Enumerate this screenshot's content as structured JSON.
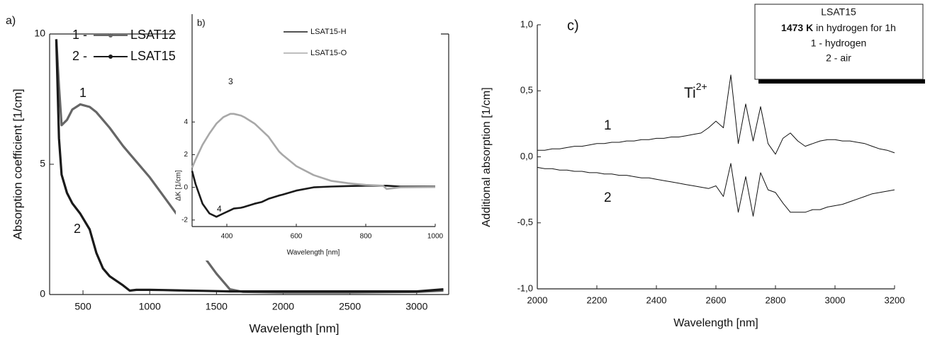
{
  "chart_data": [
    {
      "type": "line",
      "title": "a)",
      "xlabel": "Wavelength [nm]",
      "ylabel": "Absorption coefficient [1/cm]",
      "x": [
        300,
        320,
        340,
        380,
        420,
        480,
        550,
        600,
        650,
        700,
        800,
        850,
        900,
        1000,
        1100,
        1200,
        1300,
        1400,
        1500,
        1600,
        1700,
        2000,
        2500,
        3000,
        3200
      ],
      "xlim": [
        250,
        3240
      ],
      "ylim": [
        0,
        10
      ],
      "xticks": [
        500,
        1000,
        1500,
        2000,
        2500,
        3000
      ],
      "yticks": [
        0,
        5,
        10
      ],
      "series": [
        {
          "name": "LSAT12",
          "legend_prefix": "1 -",
          "color": "#666666",
          "values": [
            9.8,
            8.0,
            6.5,
            6.7,
            7.1,
            7.3,
            7.2,
            7.0,
            6.7,
            6.4,
            5.7,
            5.4,
            5.1,
            4.5,
            3.8,
            3.1,
            2.3,
            1.5,
            0.8,
            0.2,
            0.1,
            0.08,
            0.08,
            0.1,
            0.15
          ]
        },
        {
          "name": "LSAT15",
          "legend_prefix": "2 -",
          "color": "#1a1a1a",
          "values": [
            9.8,
            6.0,
            4.6,
            3.9,
            3.5,
            3.1,
            2.5,
            1.6,
            1.0,
            0.7,
            0.35,
            0.15,
            0.18,
            0.18,
            0.17,
            0.16,
            0.15,
            0.14,
            0.13,
            0.12,
            0.12,
            0.12,
            0.12,
            0.12,
            0.2
          ]
        }
      ],
      "annotations": [
        "1",
        "2"
      ]
    },
    {
      "type": "line",
      "title": "b)",
      "xlabel": "Wavelength [nm]",
      "ylabel": "ΔK [1/cm]",
      "x": [
        300,
        310,
        330,
        350,
        370,
        390,
        410,
        420,
        440,
        450,
        480,
        500,
        520,
        550,
        560,
        600,
        650,
        700,
        750,
        800,
        850,
        860,
        900,
        1000
      ],
      "xlim": [
        300,
        1000
      ],
      "ylim": [
        -2.4,
        10.6
      ],
      "xticks": [
        400,
        600,
        800,
        1000
      ],
      "yticks": [
        -2,
        0,
        2,
        4
      ],
      "series": [
        {
          "name": "LSAT15-H",
          "color": "#1a1a1a",
          "values": [
            1.0,
            0.2,
            -1.0,
            -1.6,
            -1.8,
            -1.6,
            -1.4,
            -1.3,
            -1.25,
            -1.2,
            -1.0,
            -0.9,
            -0.7,
            -0.5,
            -0.45,
            -0.2,
            0,
            0.05,
            0.08,
            0.1,
            0.1,
            0.1,
            0.05,
            0.05
          ]
        },
        {
          "name": "LSAT15-O",
          "color": "#a8a8a8",
          "values": [
            1.2,
            1.7,
            2.6,
            3.3,
            3.9,
            4.3,
            4.5,
            4.5,
            4.4,
            4.3,
            3.9,
            3.5,
            3.1,
            2.2,
            2.0,
            1.3,
            0.75,
            0.4,
            0.25,
            0.15,
            0.1,
            -0.1,
            0,
            0.02
          ]
        }
      ],
      "annotations": [
        "3",
        "4"
      ]
    },
    {
      "type": "line",
      "title": "c)",
      "xlabel": "Wavelength [nm]",
      "ylabel": "Additional absorption [1/cm]",
      "x": [
        2000,
        2025,
        2050,
        2075,
        2100,
        2125,
        2150,
        2175,
        2200,
        2225,
        2250,
        2275,
        2300,
        2325,
        2350,
        2375,
        2400,
        2425,
        2450,
        2475,
        2500,
        2525,
        2550,
        2575,
        2600,
        2625,
        2650,
        2675,
        2700,
        2725,
        2750,
        2775,
        2800,
        2825,
        2850,
        2875,
        2900,
        2925,
        2950,
        2975,
        3000,
        3025,
        3050,
        3075,
        3100,
        3125,
        3150,
        3175,
        3200
      ],
      "xlim": [
        2000,
        3200
      ],
      "ylim": [
        -1,
        1
      ],
      "xticks": [
        2000,
        2200,
        2400,
        2600,
        2800,
        3000,
        3200
      ],
      "yticks": [
        {
          "value": -1,
          "label": "-1,0"
        },
        {
          "value": -0.5,
          "label": "-0,5"
        },
        {
          "value": 0,
          "label": "0,0"
        },
        {
          "value": 0.5,
          "label": "0,5"
        },
        {
          "value": 1,
          "label": "1,0"
        }
      ],
      "series": [
        {
          "color": "#111111",
          "values": [
            0.05,
            0.05,
            0.06,
            0.06,
            0.07,
            0.08,
            0.08,
            0.09,
            0.1,
            0.1,
            0.11,
            0.11,
            0.12,
            0.12,
            0.13,
            0.13,
            0.14,
            0.14,
            0.15,
            0.15,
            0.16,
            0.17,
            0.18,
            0.22,
            0.27,
            0.22,
            0.62,
            0.1,
            0.4,
            0.12,
            0.38,
            0.1,
            0.02,
            0.14,
            0.18,
            0.12,
            0.08,
            0.1,
            0.12,
            0.13,
            0.13,
            0.12,
            0.12,
            0.11,
            0.1,
            0.08,
            0.06,
            0.05,
            0.03
          ]
        },
        {
          "color": "#111111",
          "values": [
            -0.08,
            -0.09,
            -0.09,
            -0.1,
            -0.1,
            -0.11,
            -0.11,
            -0.12,
            -0.12,
            -0.13,
            -0.13,
            -0.14,
            -0.14,
            -0.15,
            -0.16,
            -0.16,
            -0.17,
            -0.18,
            -0.19,
            -0.2,
            -0.21,
            -0.22,
            -0.23,
            -0.24,
            -0.22,
            -0.3,
            -0.05,
            -0.42,
            -0.15,
            -0.45,
            -0.12,
            -0.25,
            -0.27,
            -0.35,
            -0.42,
            -0.42,
            -0.42,
            -0.4,
            -0.4,
            -0.38,
            -0.37,
            -0.36,
            -0.34,
            -0.32,
            -0.3,
            -0.28,
            -0.27,
            -0.26,
            -0.25
          ]
        }
      ],
      "annotations": [
        "1",
        "2"
      ],
      "ion_label": "Ti",
      "ion_charge": "2+",
      "box_title": "LSAT15",
      "condition_value": "1473 K",
      "condition_text": "in hydrogen for 1h",
      "box_lines": [
        "1 - hydrogen",
        "2 - air"
      ]
    }
  ]
}
